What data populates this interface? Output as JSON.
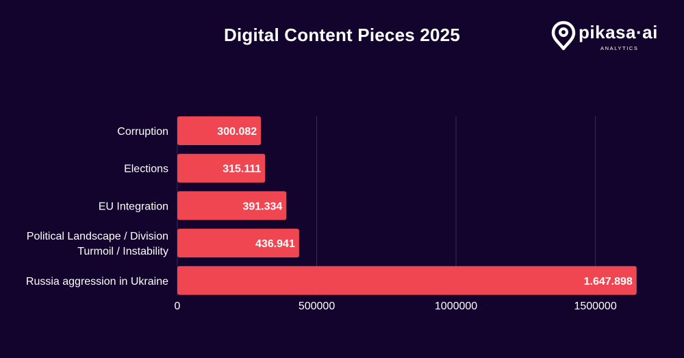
{
  "header": {
    "title": "Digital Content Pieces 2025"
  },
  "logo": {
    "name": "pikasa·ai",
    "subtitle": "ANALYTICS"
  },
  "colors": {
    "background": "#13042d",
    "bar": "#ef4652",
    "grid": "#3a2d52",
    "text": "#ffffff"
  },
  "chart_data": {
    "type": "bar",
    "orientation": "horizontal",
    "title": "Digital Content Pieces 2025",
    "categories": [
      [
        "Corruption"
      ],
      [
        "Elections"
      ],
      [
        "EU Integration"
      ],
      [
        "Political Landscape / Division",
        "Turmoil / Instability"
      ],
      [
        "Russia aggression in Ukraine"
      ]
    ],
    "values": [
      300082,
      315111,
      391334,
      436941,
      1647898
    ],
    "value_labels": [
      "300.082",
      "315.111",
      "391.334",
      "436.941",
      "1.647.898"
    ],
    "xticks": [
      0,
      500000,
      1000000,
      1500000
    ],
    "xtick_labels": [
      "0",
      "500000",
      "1000000",
      "1500000"
    ],
    "xlim": [
      0,
      1700000
    ],
    "xlabel": "",
    "ylabel": "",
    "grid": true
  }
}
